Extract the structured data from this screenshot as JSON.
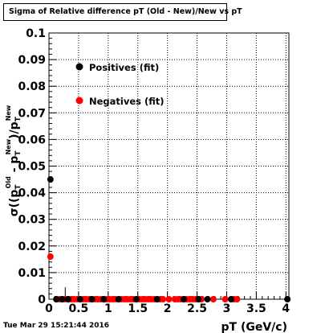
{
  "chart_data": {
    "type": "scatter",
    "title": "Sigma of Relative difference pT (Old - New)/New vs pT",
    "xlabel": "pT (GeV/c)",
    "ylabel": {
      "sigma": "σ((p",
      "t1": "T",
      "s1": "Old",
      "minus": " - p",
      "t2": "T",
      "s2": "New",
      "slash": ")/p",
      "t3": "T",
      "s3": "New"
    },
    "xlim": [
      0,
      4.05
    ],
    "ylim": [
      0,
      0.1
    ],
    "xticks": [
      "0",
      "0.5",
      "1",
      "1.5",
      "2",
      "2.5",
      "3",
      "3.5",
      "4"
    ],
    "xtick_values": [
      0,
      0.5,
      1,
      1.5,
      2,
      2.5,
      3,
      3.5,
      4
    ],
    "yticks": [
      "0",
      "0.01",
      "0.02",
      "0.03",
      "0.04",
      "0.05",
      "0.06",
      "0.07",
      "0.08",
      "0.09",
      "0.1"
    ],
    "ytick_values": [
      0,
      0.01,
      0.02,
      0.03,
      0.04,
      0.05,
      0.06,
      0.07,
      0.08,
      0.09,
      0.1
    ],
    "grid": true,
    "legend_placement": "top-left",
    "series": [
      {
        "name": "Positives (fit)",
        "color": "#000000",
        "points": [
          {
            "x": 0.025,
            "y": 0.045
          },
          {
            "x": 0.125,
            "y": 0
          },
          {
            "x": 0.225,
            "y": 0
          },
          {
            "x": 0.325,
            "y": 0
          },
          {
            "x": 0.525,
            "y": 0
          },
          {
            "x": 0.725,
            "y": 0
          },
          {
            "x": 0.925,
            "y": 0
          },
          {
            "x": 1.175,
            "y": 0
          },
          {
            "x": 1.475,
            "y": 0
          },
          {
            "x": 1.825,
            "y": 0
          },
          {
            "x": 2.275,
            "y": 0
          },
          {
            "x": 2.525,
            "y": 0
          },
          {
            "x": 2.675,
            "y": 0
          },
          {
            "x": 3.075,
            "y": 0
          },
          {
            "x": 4.025,
            "y": 0
          }
        ],
        "errors": []
      },
      {
        "name": "Negatives (fit)",
        "color": "#ff0000",
        "points": [
          {
            "x": 0.025,
            "y": 0.016
          },
          {
            "x": 0.125,
            "y": 0
          },
          {
            "x": 0.175,
            "y": 0
          },
          {
            "x": 0.225,
            "y": 0
          },
          {
            "x": 0.275,
            "y": 0
          },
          {
            "x": 0.325,
            "y": 0
          },
          {
            "x": 0.375,
            "y": 0
          },
          {
            "x": 0.425,
            "y": 0
          },
          {
            "x": 0.475,
            "y": 0
          },
          {
            "x": 0.525,
            "y": 0
          },
          {
            "x": 0.575,
            "y": 0
          },
          {
            "x": 0.625,
            "y": 0
          },
          {
            "x": 0.675,
            "y": 0
          },
          {
            "x": 0.725,
            "y": 0
          },
          {
            "x": 0.775,
            "y": 0
          },
          {
            "x": 0.825,
            "y": 0
          },
          {
            "x": 0.875,
            "y": 0
          },
          {
            "x": 0.925,
            "y": 0
          },
          {
            "x": 0.975,
            "y": 0
          },
          {
            "x": 1.025,
            "y": 0
          },
          {
            "x": 1.075,
            "y": 0
          },
          {
            "x": 1.125,
            "y": 0
          },
          {
            "x": 1.175,
            "y": 0
          },
          {
            "x": 1.225,
            "y": 0
          },
          {
            "x": 1.275,
            "y": 0
          },
          {
            "x": 1.325,
            "y": 0
          },
          {
            "x": 1.375,
            "y": 0
          },
          {
            "x": 1.425,
            "y": 0
          },
          {
            "x": 1.475,
            "y": 0
          },
          {
            "x": 1.525,
            "y": 0
          },
          {
            "x": 1.575,
            "y": 0
          },
          {
            "x": 1.625,
            "y": 0
          },
          {
            "x": 1.675,
            "y": 0
          },
          {
            "x": 1.725,
            "y": 0
          },
          {
            "x": 1.775,
            "y": 0
          },
          {
            "x": 1.825,
            "y": 0
          },
          {
            "x": 1.875,
            "y": 0
          },
          {
            "x": 1.925,
            "y": 0
          },
          {
            "x": 2.025,
            "y": 0
          },
          {
            "x": 2.125,
            "y": 0
          },
          {
            "x": 2.175,
            "y": 0
          },
          {
            "x": 2.225,
            "y": 0
          },
          {
            "x": 2.275,
            "y": 0
          },
          {
            "x": 2.325,
            "y": 0
          },
          {
            "x": 2.375,
            "y": 0
          },
          {
            "x": 2.425,
            "y": 0
          },
          {
            "x": 2.475,
            "y": 0
          },
          {
            "x": 2.525,
            "y": 0
          },
          {
            "x": 2.575,
            "y": 0
          },
          {
            "x": 2.775,
            "y": 0
          },
          {
            "x": 2.975,
            "y": 0
          },
          {
            "x": 3.125,
            "y": 0
          },
          {
            "x": 3.175,
            "y": 0
          }
        ],
        "errors": [
          {
            "x": 0.275,
            "low": 0,
            "high": 0.0045
          }
        ]
      }
    ]
  },
  "footer": {
    "timestamp": "Tue Mar 29 15:21:44 2016"
  }
}
